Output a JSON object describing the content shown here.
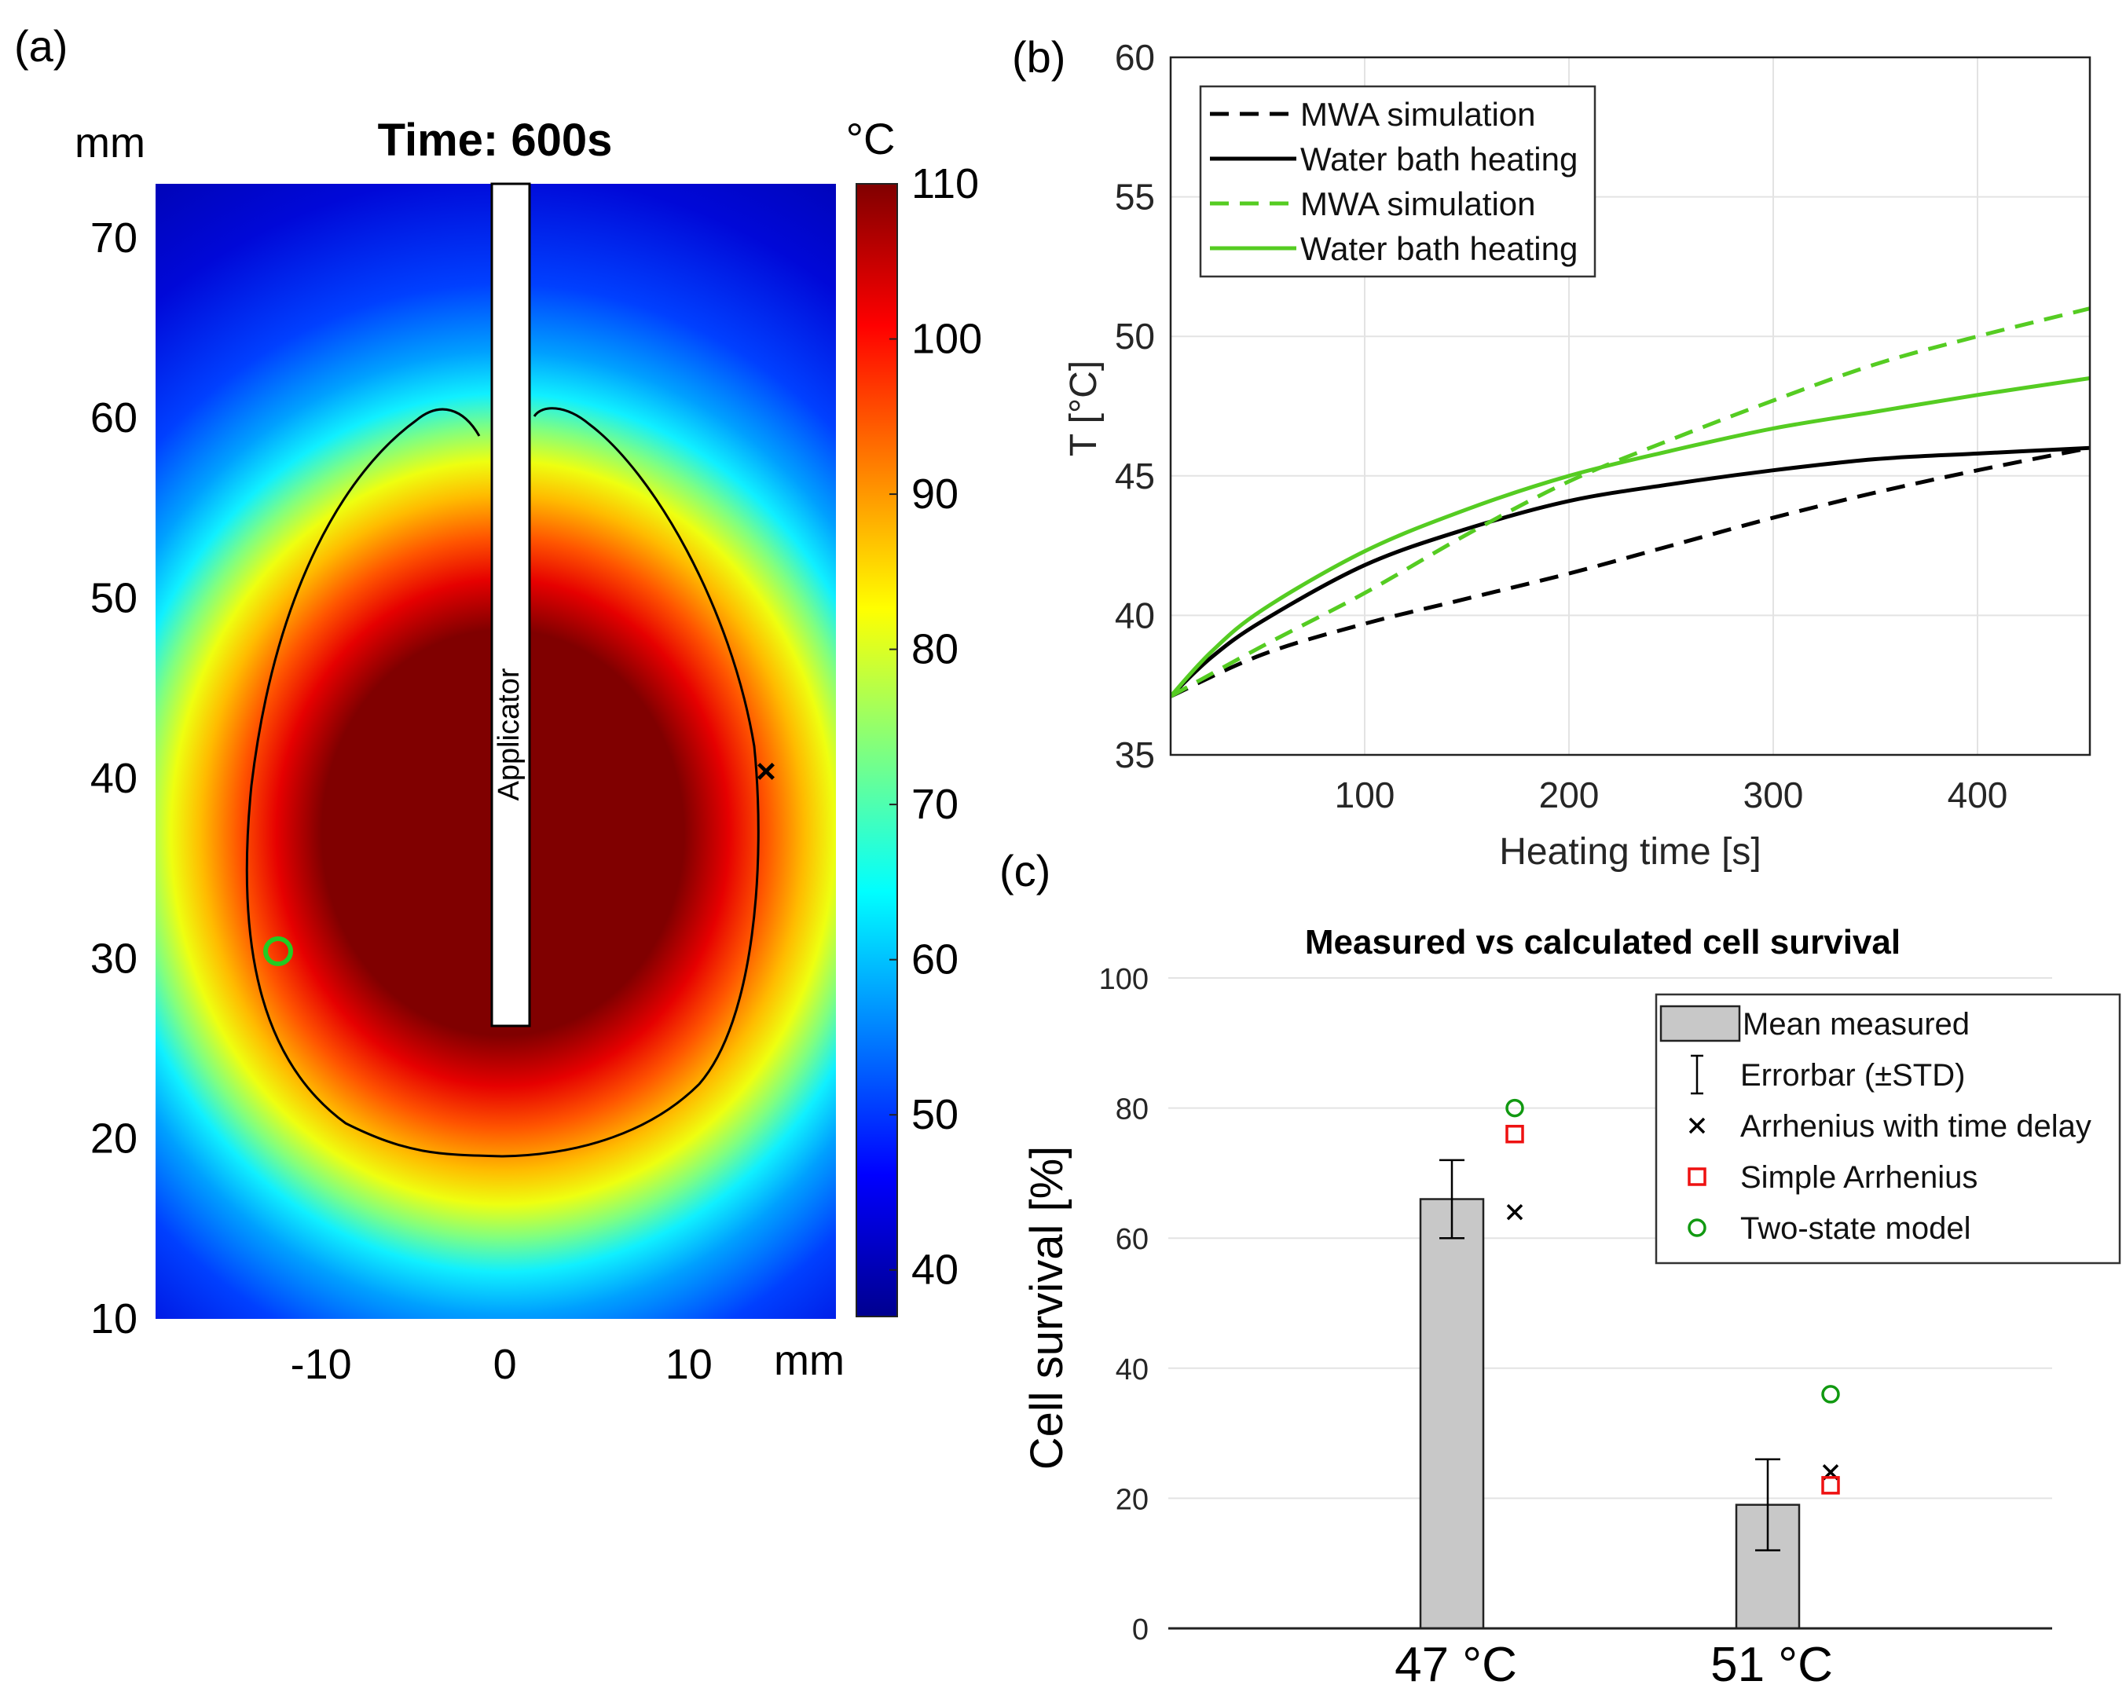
{
  "panel_labels": {
    "a": "(a)",
    "b": "(b)",
    "c": "(c)"
  },
  "chart_data": [
    {
      "id": "a",
      "type": "heatmap",
      "title": "Time: 600s",
      "xlabel": "mm",
      "ylabel": "mm",
      "xlim": [
        -19,
        18
      ],
      "ylim": [
        10,
        73
      ],
      "xticks": [
        -10,
        0,
        10
      ],
      "yticks": [
        10,
        20,
        30,
        40,
        50,
        60,
        70
      ],
      "colorbar": {
        "label": "°C",
        "ticks": [
          40,
          50,
          60,
          70,
          80,
          90,
          100,
          110
        ],
        "lim": [
          37,
          110
        ],
        "colormap": "jet"
      },
      "annotations": {
        "applicator_label": "Applicator",
        "applicator_x": [
          -0.8,
          1.4
        ],
        "applicator_y_bottom": 26,
        "cross_marker": {
          "x": 14.8,
          "y": 40
        },
        "circle_marker": {
          "x": -12.5,
          "y": 30.3
        }
      }
    },
    {
      "id": "b",
      "type": "line",
      "xlabel": "Heating time [s]",
      "ylabel": "T [°C]",
      "xlim": [
        5,
        455
      ],
      "ylim": [
        35,
        60
      ],
      "xticks": [
        100,
        200,
        300,
        400
      ],
      "yticks": [
        35,
        40,
        45,
        50,
        55,
        60
      ],
      "grid": true,
      "legend_position": "top-left",
      "series": [
        {
          "name": "MWA simulation",
          "color": "#000000",
          "dash": true,
          "x": [
            5,
            50,
            100,
            150,
            200,
            250,
            300,
            350,
            400,
            455
          ],
          "y": [
            37.1,
            38.6,
            39.7,
            40.6,
            41.5,
            42.5,
            43.5,
            44.4,
            45.2,
            46.0
          ]
        },
        {
          "name": "Water bath heating",
          "color": "#000000",
          "dash": false,
          "x": [
            5,
            25,
            50,
            100,
            150,
            200,
            250,
            300,
            350,
            400,
            455
          ],
          "y": [
            37.1,
            38.5,
            39.8,
            41.8,
            43.1,
            44.1,
            44.7,
            45.2,
            45.6,
            45.8,
            46.0
          ]
        },
        {
          "name": "MWA simulation",
          "color": "#55cc22",
          "dash": true,
          "x": [
            5,
            50,
            100,
            150,
            200,
            250,
            300,
            350,
            400,
            455
          ],
          "y": [
            37.1,
            38.9,
            40.8,
            42.9,
            44.8,
            46.3,
            47.7,
            49.0,
            50.0,
            51.0
          ]
        },
        {
          "name": "Water bath heating",
          "color": "#55cc22",
          "dash": false,
          "x": [
            5,
            25,
            50,
            100,
            150,
            200,
            250,
            300,
            350,
            400,
            455
          ],
          "y": [
            37.1,
            38.7,
            40.2,
            42.3,
            43.8,
            45.0,
            45.9,
            46.7,
            47.3,
            47.9,
            48.5
          ]
        }
      ]
    },
    {
      "id": "c",
      "type": "bar",
      "title": "Measured vs calculated cell survival",
      "ylabel": "Cell survival [%]",
      "categories": [
        "47 °C",
        "51 °C"
      ],
      "ylim": [
        0,
        100
      ],
      "yticks": [
        0,
        20,
        40,
        60,
        80,
        100
      ],
      "grid": true,
      "legend_position": "top-right",
      "series": [
        {
          "name": "Mean measured",
          "kind": "bar",
          "values": [
            66,
            19
          ],
          "color": "#c8c8c8"
        },
        {
          "name": "Errorbar (±STD)",
          "kind": "errorbar",
          "low": [
            60,
            12
          ],
          "high": [
            72,
            26
          ]
        },
        {
          "name": "Arrhenius with time delay",
          "kind": "marker",
          "marker": "x",
          "color": "#000000",
          "values": [
            64,
            24
          ]
        },
        {
          "name": "Simple Arrhenius",
          "kind": "marker",
          "marker": "square",
          "color": "#ee1111",
          "values": [
            76,
            22
          ]
        },
        {
          "name": "Two-state model",
          "kind": "marker",
          "marker": "circle",
          "color": "#119911",
          "values": [
            80,
            36
          ]
        }
      ]
    }
  ]
}
